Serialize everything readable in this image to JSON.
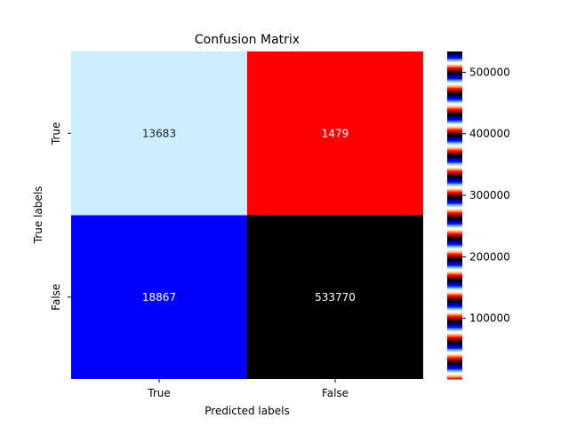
{
  "chart_data": {
    "type": "heatmap",
    "title": "Confusion Matrix",
    "xlabel": "Predicted labels",
    "ylabel": "True labels",
    "x_categories": [
      "True",
      "False"
    ],
    "y_categories": [
      "True",
      "False"
    ],
    "values": [
      [
        13683,
        1479
      ],
      [
        18867,
        533770
      ]
    ],
    "cell_colors": [
      [
        "#cdeeff",
        "#ff0000"
      ],
      [
        "#0000ff",
        "#000000"
      ]
    ],
    "cell_text_colors": [
      [
        "#262626",
        "#ffffff"
      ],
      [
        "#ffffff",
        "#ffffff"
      ]
    ],
    "colorbar": {
      "range": [
        1479,
        533770
      ],
      "ticks": [
        "100000",
        "200000",
        "300000",
        "400000",
        "500000"
      ],
      "tick_values": [
        100000,
        200000,
        300000,
        400000,
        500000
      ],
      "colormap": "flag"
    }
  }
}
